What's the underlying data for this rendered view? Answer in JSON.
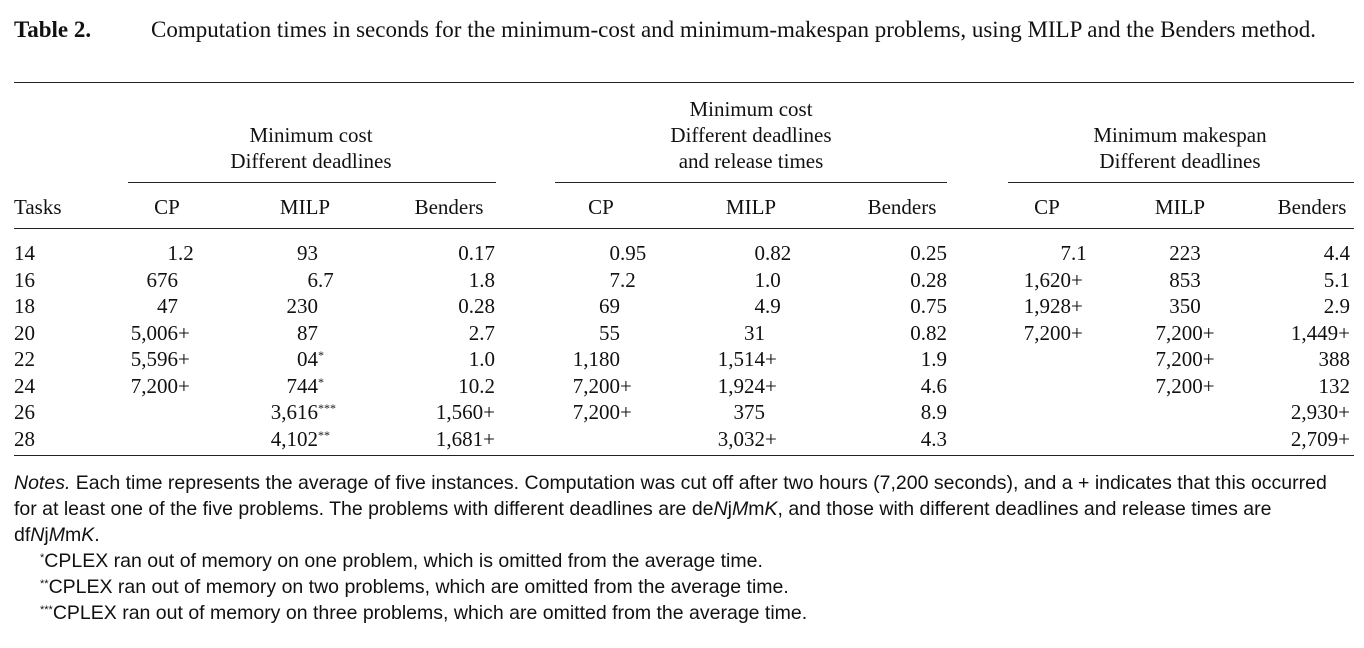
{
  "caption": {
    "label": "Table 2.",
    "text": "Computation times in seconds for the minimum-cost and minimum-makespan problems, using MILP and the Benders method."
  },
  "groups": [
    {
      "lines": [
        "Minimum cost",
        "Different deadlines"
      ]
    },
    {
      "lines": [
        "Minimum cost",
        "Different deadlines",
        "and release times"
      ]
    },
    {
      "lines": [
        "Minimum makespan",
        "Different deadlines"
      ]
    }
  ],
  "columns": [
    "Tasks",
    "CP",
    "MILP",
    "Benders",
    "CP",
    "MILP",
    "Benders",
    "CP",
    "MILP",
    "Benders"
  ],
  "rows": [
    [
      "14",
      "1.2",
      "93",
      "0.17",
      "0.95",
      "0.82",
      "0.25",
      "7.1",
      "223",
      "4.4"
    ],
    [
      "16",
      "676",
      "6.7",
      "1.8",
      "7.2",
      "1.0",
      "0.28",
      "1,620+",
      "853",
      "5.1"
    ],
    [
      "18",
      "47",
      "230",
      "0.28",
      "69",
      "4.9",
      "0.75",
      "1,928+",
      "350",
      "2.9"
    ],
    [
      "20",
      "5,006+",
      "87",
      "2.7",
      "55",
      "31",
      "0.82",
      "7,200+",
      "7,200+",
      "1,449+"
    ],
    [
      "22",
      "5,596+",
      "04*",
      "1.0",
      "1,180",
      "1,514+",
      "1.9",
      "",
      "7,200+",
      "388"
    ],
    [
      "24",
      "7,200+",
      "744*",
      "10.2",
      "7,200+",
      "1,924+",
      "4.6",
      "",
      "7,200+",
      "132"
    ],
    [
      "26",
      "",
      "3,616***",
      "1,560+",
      "7,200+",
      "375",
      "8.9",
      "",
      "",
      "2,930+"
    ],
    [
      "28",
      "",
      "4,102**",
      "1,681+",
      "",
      "3,032+",
      "4.3",
      "",
      "",
      "2,709+"
    ]
  ],
  "notes": {
    "main_label": "Notes.",
    "main_text": " Each time represents the average of five instances. Computation was cut off after two hours (7,200 seconds), and a + indicates that this occurred for at least one of the five problems. The problems with different deadlines are deNjMmK, and those with different deadlines and release times are dfNjMmK.",
    "footnotes": [
      {
        "mark": "*",
        "text": "CPLEX ran out of memory on one problem, which is omitted from the average time."
      },
      {
        "mark": "**",
        "text": "CPLEX ran out of memory on two problems, which are omitted from the average time."
      },
      {
        "mark": "***",
        "text": "CPLEX ran out of memory on three problems, which are omitted from the average time."
      }
    ]
  }
}
